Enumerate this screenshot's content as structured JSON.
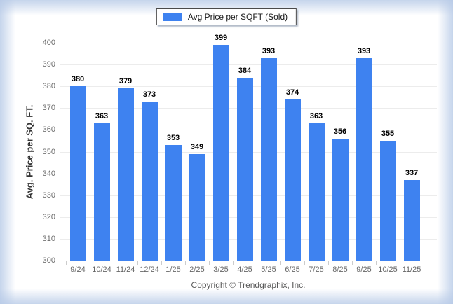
{
  "legend": {
    "label": "Avg Price per SQFT (Sold)",
    "swatch_color": "#3e82f0"
  },
  "chart_data": {
    "type": "bar",
    "title": "",
    "categories": [
      "9/24",
      "10/24",
      "11/24",
      "12/24",
      "1/25",
      "2/25",
      "3/25",
      "4/25",
      "5/25",
      "6/25",
      "7/25",
      "8/25",
      "9/25",
      "10/25",
      "11/25"
    ],
    "series": [
      {
        "name": "Avg Price per SQFT (Sold)",
        "values": [
          380,
          363,
          379,
          373,
          353,
          349,
          399,
          384,
          393,
          374,
          363,
          356,
          393,
          355,
          337
        ]
      }
    ],
    "xlabel": "",
    "ylabel": "Avg. Price per SQ. FT.",
    "ylim": [
      300,
      400
    ],
    "ytick_step": 10,
    "grid": "horizontal",
    "legend_position": "top-center",
    "bar_color": "#3e82f0",
    "value_labels": true
  },
  "footer": {
    "copyright": "Copyright © Trendgraphix, Inc."
  }
}
